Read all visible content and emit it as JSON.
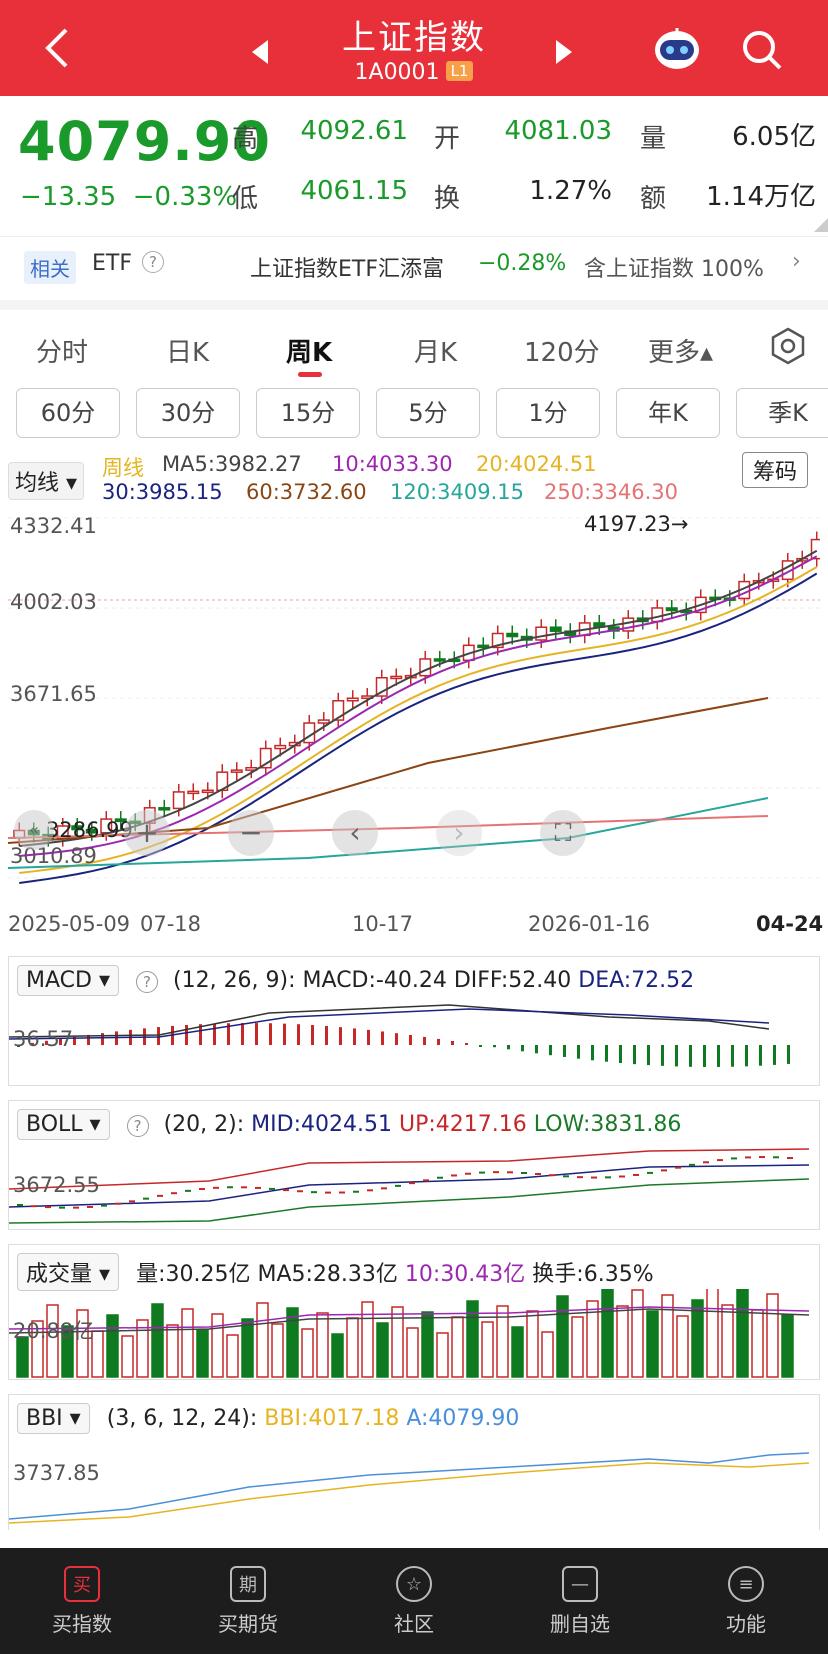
{
  "header": {
    "title": "上证指数",
    "code": "1A0001",
    "level": "L1"
  },
  "quote": {
    "price": "4079.90",
    "change": "−13.35",
    "change_pct": "−0.33%",
    "high_label": "高",
    "high": "4092.61",
    "low_label": "低",
    "low": "4061.15",
    "open_label": "开",
    "open": "4081.03",
    "turnover_label": "换",
    "turnover": "1.27%",
    "volume_label": "量",
    "volume": "6.05亿",
    "amount_label": "额",
    "amount": "1.14万亿"
  },
  "etf_bar": {
    "tag": "相关",
    "label": "ETF",
    "help": "?",
    "etf_name": "上证指数ETF汇添富",
    "etf_change": "−0.28%",
    "contains": "含上证指数 100%"
  },
  "tabs": [
    "分时",
    "日K",
    "周K",
    "月K",
    "120分",
    "更多▴"
  ],
  "active_tab": "周K",
  "periods": [
    "60分",
    "30分",
    "15分",
    "5分",
    "1分",
    "年K",
    "季K"
  ],
  "main_chart": {
    "indicator_select": "均线",
    "chip_button": "筹码",
    "ma_row1": {
      "label": "周线",
      "ma5": "MA5:3982.27",
      "ma10": "10:4033.30",
      "ma20": "20:4024.51"
    },
    "ma_row2": {
      "ma30": "30:3985.15",
      "ma60": "60:3732.60",
      "ma120": "120:3409.15",
      "ma250": "250:3346.30"
    },
    "y_labels": [
      "4332.41",
      "4002.03",
      "3671.65",
      "3010.89"
    ],
    "low_marker": "3286.99",
    "high_marker": "4197.23→",
    "x_labels": [
      "2025-05-09",
      "07-18",
      "10-17",
      "2026-01-16",
      "04-24"
    ]
  },
  "macd": {
    "select": "MACD",
    "params": "(12, 26, 9):",
    "macd": "MACD:-40.24",
    "diff": "DIFF:52.40",
    "dea": "DEA:72.52",
    "ylabel": "36.57"
  },
  "boll": {
    "select": "BOLL",
    "params": "(20, 2):",
    "mid": "MID:4024.51",
    "up": "UP:4217.16",
    "low": "LOW:3831.86",
    "ylabel": "3672.55"
  },
  "vol": {
    "select": "成交量",
    "vol": "量:30.25亿",
    "ma5": "MA5:28.33亿",
    "ma10": "10:30.43亿",
    "turn": "换手:6.35%",
    "ylabel": "20.88亿"
  },
  "bbi": {
    "select": "BBI",
    "params": "(3, 6, 12, 24):",
    "bbi": "BBI:4017.18",
    "a": "A:4079.90",
    "ylabel": "3737.85"
  },
  "bottom_nav": [
    {
      "label": "买指数",
      "icon": "买"
    },
    {
      "label": "买期货",
      "icon": "期"
    },
    {
      "label": "社区",
      "icon": "☆"
    },
    {
      "label": "删自选",
      "icon": "—"
    },
    {
      "label": "功能",
      "icon": "≡"
    }
  ],
  "colors": {
    "red": "#e8303a",
    "green": "#1a9a2a",
    "candle_green": "#0f7a1f",
    "ma5": "#444444",
    "ma10": "#9c27b0",
    "ma20": "#e6b422",
    "ma30": "#1a237e",
    "ma60": "#8b4513",
    "ma120": "#26a69a",
    "ma250": "#e57373"
  }
}
